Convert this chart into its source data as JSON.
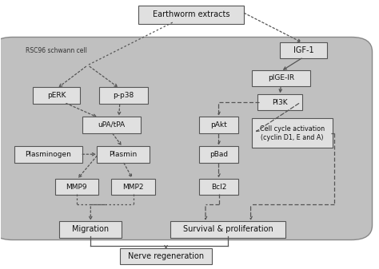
{
  "bg": "#ffffff",
  "cell_fc": "#c0c0c0",
  "cell_ec": "#888888",
  "box_fc": "#e0e0e0",
  "box_ec": "#555555",
  "ac": "#555555",
  "lw": 0.9,
  "nodes": {
    "earthworm": [
      0.37,
      0.92,
      0.27,
      0.058,
      "Earthworm extracts",
      7.0
    ],
    "igf1": [
      0.745,
      0.79,
      0.115,
      0.052,
      "IGF-1",
      7.0
    ],
    "pige": [
      0.67,
      0.685,
      0.145,
      0.052,
      "pIGE-IR",
      6.5
    ],
    "pi3k": [
      0.685,
      0.595,
      0.11,
      0.052,
      "PI3K",
      6.5
    ],
    "perk": [
      0.09,
      0.62,
      0.115,
      0.052,
      "pERK",
      6.5
    ],
    "pp38": [
      0.265,
      0.62,
      0.12,
      0.052,
      "p-p38",
      6.5
    ],
    "upa": [
      0.22,
      0.51,
      0.145,
      0.052,
      "uPA/tPA",
      6.5
    ],
    "plasminogen": [
      0.04,
      0.4,
      0.17,
      0.052,
      "Plasminogen",
      6.5
    ],
    "plasmin": [
      0.258,
      0.4,
      0.13,
      0.052,
      "Plasmin",
      6.5
    ],
    "pakt": [
      0.53,
      0.51,
      0.095,
      0.052,
      "pAkt",
      6.5
    ],
    "pbad": [
      0.53,
      0.4,
      0.095,
      0.052,
      "pBad",
      6.5
    ],
    "cellcycle": [
      0.67,
      0.455,
      0.205,
      0.1,
      "Cell cycle activation\n(cyclin D1, E and A)",
      5.8
    ],
    "mmp9": [
      0.148,
      0.278,
      0.105,
      0.052,
      "MMP9",
      6.5
    ],
    "mmp2": [
      0.298,
      0.278,
      0.105,
      0.052,
      "MMP2",
      6.5
    ],
    "bcl2": [
      0.53,
      0.278,
      0.095,
      0.052,
      "Bcl2",
      6.5
    ],
    "migration": [
      0.16,
      0.118,
      0.155,
      0.052,
      "Migration",
      7.0
    ],
    "survival": [
      0.455,
      0.118,
      0.295,
      0.052,
      "Survival & proliferation",
      7.0
    ],
    "nerve": [
      0.32,
      0.018,
      0.235,
      0.052,
      "Nerve regeneration",
      7.0
    ]
  }
}
